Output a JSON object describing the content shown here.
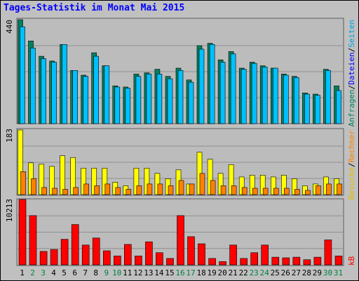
{
  "title": "Tages-Statistik im Monat Mai 2015",
  "colors": {
    "anfragen": "#008060",
    "dateien": "#00c0ff",
    "seiten": "#00c0ff",
    "besuche": "#ffff00",
    "rechner": "#ff8000",
    "kb": "#ff0000",
    "weekday_label": "#000000",
    "weekend_label": "#008040"
  },
  "chart_data": [
    {
      "type": "bar",
      "name": "hits-files",
      "ymax_label": "440",
      "ymax": 440,
      "series": [
        {
          "name": "Anfragen",
          "values": [
            440,
            350,
            285,
            265,
            335,
            225,
            205,
            300,
            245,
            160,
            155,
            210,
            215,
            230,
            200,
            235,
            185,
            330,
            340,
            270,
            305,
            235,
            260,
            245,
            235,
            210,
            200,
            130,
            125,
            230,
            160
          ]
        },
        {
          "name": "Dateien",
          "values": [
            410,
            320,
            275,
            260,
            335,
            225,
            200,
            285,
            245,
            155,
            150,
            200,
            210,
            210,
            190,
            225,
            175,
            315,
            335,
            260,
            295,
            230,
            255,
            240,
            235,
            205,
            195,
            125,
            120,
            225,
            140
          ]
        }
      ]
    },
    {
      "type": "bar",
      "name": "pages-visits-hosts",
      "ymax_label": "183",
      "ymax": 183,
      "series": [
        {
          "name": "Seiten",
          "values": [
            183,
            90,
            86,
            80,
            110,
            105,
            75,
            75,
            75,
            35,
            25,
            75,
            75,
            60,
            45,
            70,
            30,
            120,
            100,
            60,
            85,
            50,
            55,
            55,
            50,
            55,
            45,
            25,
            30,
            50,
            45
          ]
        },
        {
          "name": "Besuche",
          "values": [
            183,
            90,
            86,
            80,
            110,
            105,
            75,
            75,
            75,
            35,
            25,
            75,
            75,
            60,
            45,
            70,
            30,
            120,
            100,
            60,
            85,
            50,
            55,
            55,
            50,
            55,
            45,
            25,
            30,
            50,
            45
          ]
        },
        {
          "name": "Rechner",
          "values": [
            65,
            45,
            20,
            18,
            15,
            20,
            30,
            25,
            30,
            20,
            15,
            25,
            30,
            30,
            25,
            40,
            30,
            60,
            40,
            25,
            25,
            20,
            18,
            18,
            18,
            18,
            15,
            12,
            25,
            30,
            30
          ]
        }
      ]
    },
    {
      "type": "bar",
      "name": "kb",
      "ymax_label": "10213",
      "ymax": 10213,
      "series": [
        {
          "name": "kB",
          "values": [
            10213,
            7700,
            2100,
            2400,
            4000,
            6300,
            3100,
            4200,
            2200,
            1400,
            3200,
            1400,
            3600,
            1900,
            1000,
            7700,
            4400,
            3300,
            1000,
            500,
            3100,
            1000,
            1900,
            3100,
            1200,
            1100,
            1200,
            800,
            1200,
            3900,
            1400
          ]
        }
      ]
    }
  ],
  "days": [
    "1",
    "2",
    "3",
    "4",
    "5",
    "6",
    "7",
    "8",
    "9",
    "10",
    "11",
    "12",
    "13",
    "14",
    "15",
    "16",
    "17",
    "18",
    "19",
    "20",
    "21",
    "22",
    "23",
    "24",
    "25",
    "26",
    "27",
    "28",
    "29",
    "30",
    "31"
  ],
  "weekend_days": [
    2,
    3,
    9,
    10,
    16,
    17,
    23,
    24,
    30,
    31
  ],
  "legend": {
    "anfragen": "Anfragen",
    "dateien": "Dateien",
    "seiten": "Seiten",
    "besuche": "Besuche",
    "rechner": "Rechner",
    "kb": "kB",
    "sep": "/"
  }
}
